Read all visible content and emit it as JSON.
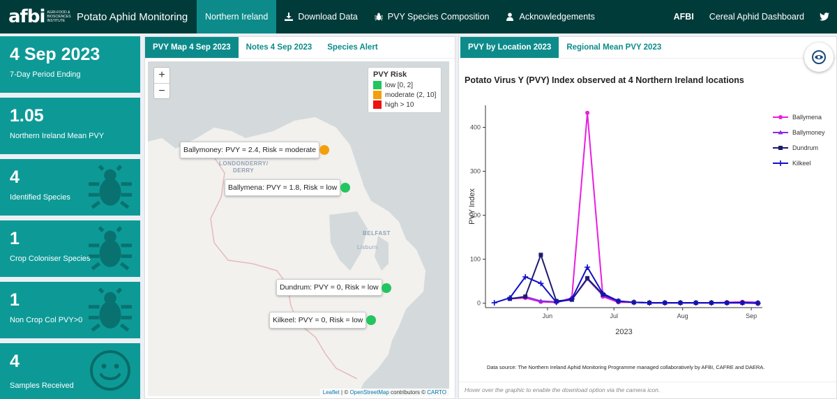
{
  "header": {
    "logo_text": "afbi",
    "logo_subtext": "AGRI-FOOD & BIOSCIENCES INSTITUTE",
    "app_title": "Potato Aphid Monitoring",
    "nav": [
      {
        "label": "Northern Ireland",
        "active": true
      },
      {
        "label": "Download Data",
        "icon": "download-icon"
      },
      {
        "label": "PVY Species Composition",
        "icon": "bug-icon"
      },
      {
        "label": "Acknowledgements",
        "icon": "user-icon"
      }
    ],
    "right_links": [
      "AFBI",
      "Cereal Aphid Dashboard"
    ],
    "twitter_icon": "twitter-icon"
  },
  "value_boxes": [
    {
      "value": "4 Sep 2023",
      "label": "7-Day Period Ending",
      "icon": ""
    },
    {
      "value": "1.05",
      "label": "Northern Ireland Mean PVY",
      "icon": ""
    },
    {
      "value": "4",
      "label": "Identified Species",
      "icon": "bug-icon"
    },
    {
      "value": "1",
      "label": "Crop Coloniser Species",
      "icon": "bug-icon"
    },
    {
      "value": "1",
      "label": "Non Crop Col PVY>0",
      "icon": "bug-icon"
    },
    {
      "value": "4",
      "label": "Samples Received",
      "icon": "smile-icon"
    }
  ],
  "map_panel": {
    "tabs": [
      "PVY Map 4 Sep 2023",
      "Notes 4 Sep 2023",
      "Species Alert"
    ],
    "zoom_in": "+",
    "zoom_out": "−",
    "legend": {
      "title": "PVY Risk",
      "items": [
        {
          "label": "low [0, 2]",
          "color": "#22c55e"
        },
        {
          "label": "moderate (2, 10]",
          "color": "#f59e0b"
        },
        {
          "label": "high > 10",
          "color": "#ef1111"
        }
      ]
    },
    "places": [
      "LONDONDERRY/",
      "DERRY",
      "BELFAST",
      "Lisburn"
    ],
    "markers": [
      {
        "tooltip": "Ballymoney: PVY = 2.4, Risk = moderate",
        "color": "#f59e0b"
      },
      {
        "tooltip": "Ballymena: PVY = 1.8, Risk = low",
        "color": "#22c55e"
      },
      {
        "tooltip": "Dundrum: PVY = 0, Risk = low",
        "color": "#22c55e"
      },
      {
        "tooltip": "Kilkeel: PVY = 0, Risk = low",
        "color": "#22c55e"
      }
    ],
    "attribution": {
      "leaflet": "Leaflet",
      "sep": " | © ",
      "osm": "OpenStreetMap",
      "contrib": " contributors © ",
      "carto": "CARTO"
    }
  },
  "chart_panel": {
    "tabs": [
      "PVY by Location 2023",
      "Regional Mean PVY 2023"
    ],
    "title": "Potato Virus Y (PVY) Index observed at 4 Northern Ireland locations",
    "source": "Data source: The Northern Ireland Aphid Monitoring Programme managed collaboratively by AFBI, CAFRE and DAERA.",
    "footer": "Hover over the graphic to enable the download option via the camera icon.",
    "camera_icon": "camera-icon"
  },
  "chart_data": {
    "type": "line",
    "title": "Potato Virus Y (PVY) Index observed at 4 Northern Ireland locations",
    "xlabel": "2023",
    "ylabel": "PVY Index",
    "x": [
      "2023-05-08",
      "2023-05-15",
      "2023-05-22",
      "2023-05-29",
      "2023-06-05",
      "2023-06-12",
      "2023-06-19",
      "2023-06-26",
      "2023-07-03",
      "2023-07-10",
      "2023-07-17",
      "2023-07-24",
      "2023-07-31",
      "2023-08-07",
      "2023-08-14",
      "2023-08-21",
      "2023-08-28",
      "2023-09-04"
    ],
    "x_ticks": [
      "Jun",
      "Jul",
      "Aug",
      "Sep"
    ],
    "y_ticks": [
      0,
      100,
      200,
      300,
      400
    ],
    "ylim": [
      -10,
      450
    ],
    "grid": false,
    "legend_position": "right",
    "series": [
      {
        "name": "Ballymena",
        "color": "#e81ee0",
        "marker": "circle",
        "values": [
          null,
          10,
          12,
          3,
          2,
          12,
          433,
          15,
          2,
          2,
          1,
          1,
          1,
          1,
          1,
          2,
          3,
          2
        ]
      },
      {
        "name": "Ballymoney",
        "color": "#8a2be2",
        "marker": "triangle",
        "values": [
          null,
          10,
          15,
          5,
          3,
          8,
          55,
          18,
          4,
          2,
          1,
          1,
          1,
          1,
          1,
          1,
          1,
          2
        ]
      },
      {
        "name": "Dundrum",
        "color": "#1e1b6e",
        "marker": "square",
        "values": [
          null,
          10,
          15,
          110,
          5,
          8,
          57,
          20,
          5,
          2,
          1,
          1,
          1,
          1,
          1,
          1,
          1,
          0
        ]
      },
      {
        "name": "Kilkeel",
        "color": "#1010c8",
        "marker": "plus",
        "values": [
          1,
          12,
          60,
          45,
          2,
          10,
          82,
          22,
          5,
          2,
          1,
          1,
          1,
          1,
          1,
          1,
          1,
          0
        ]
      }
    ]
  }
}
